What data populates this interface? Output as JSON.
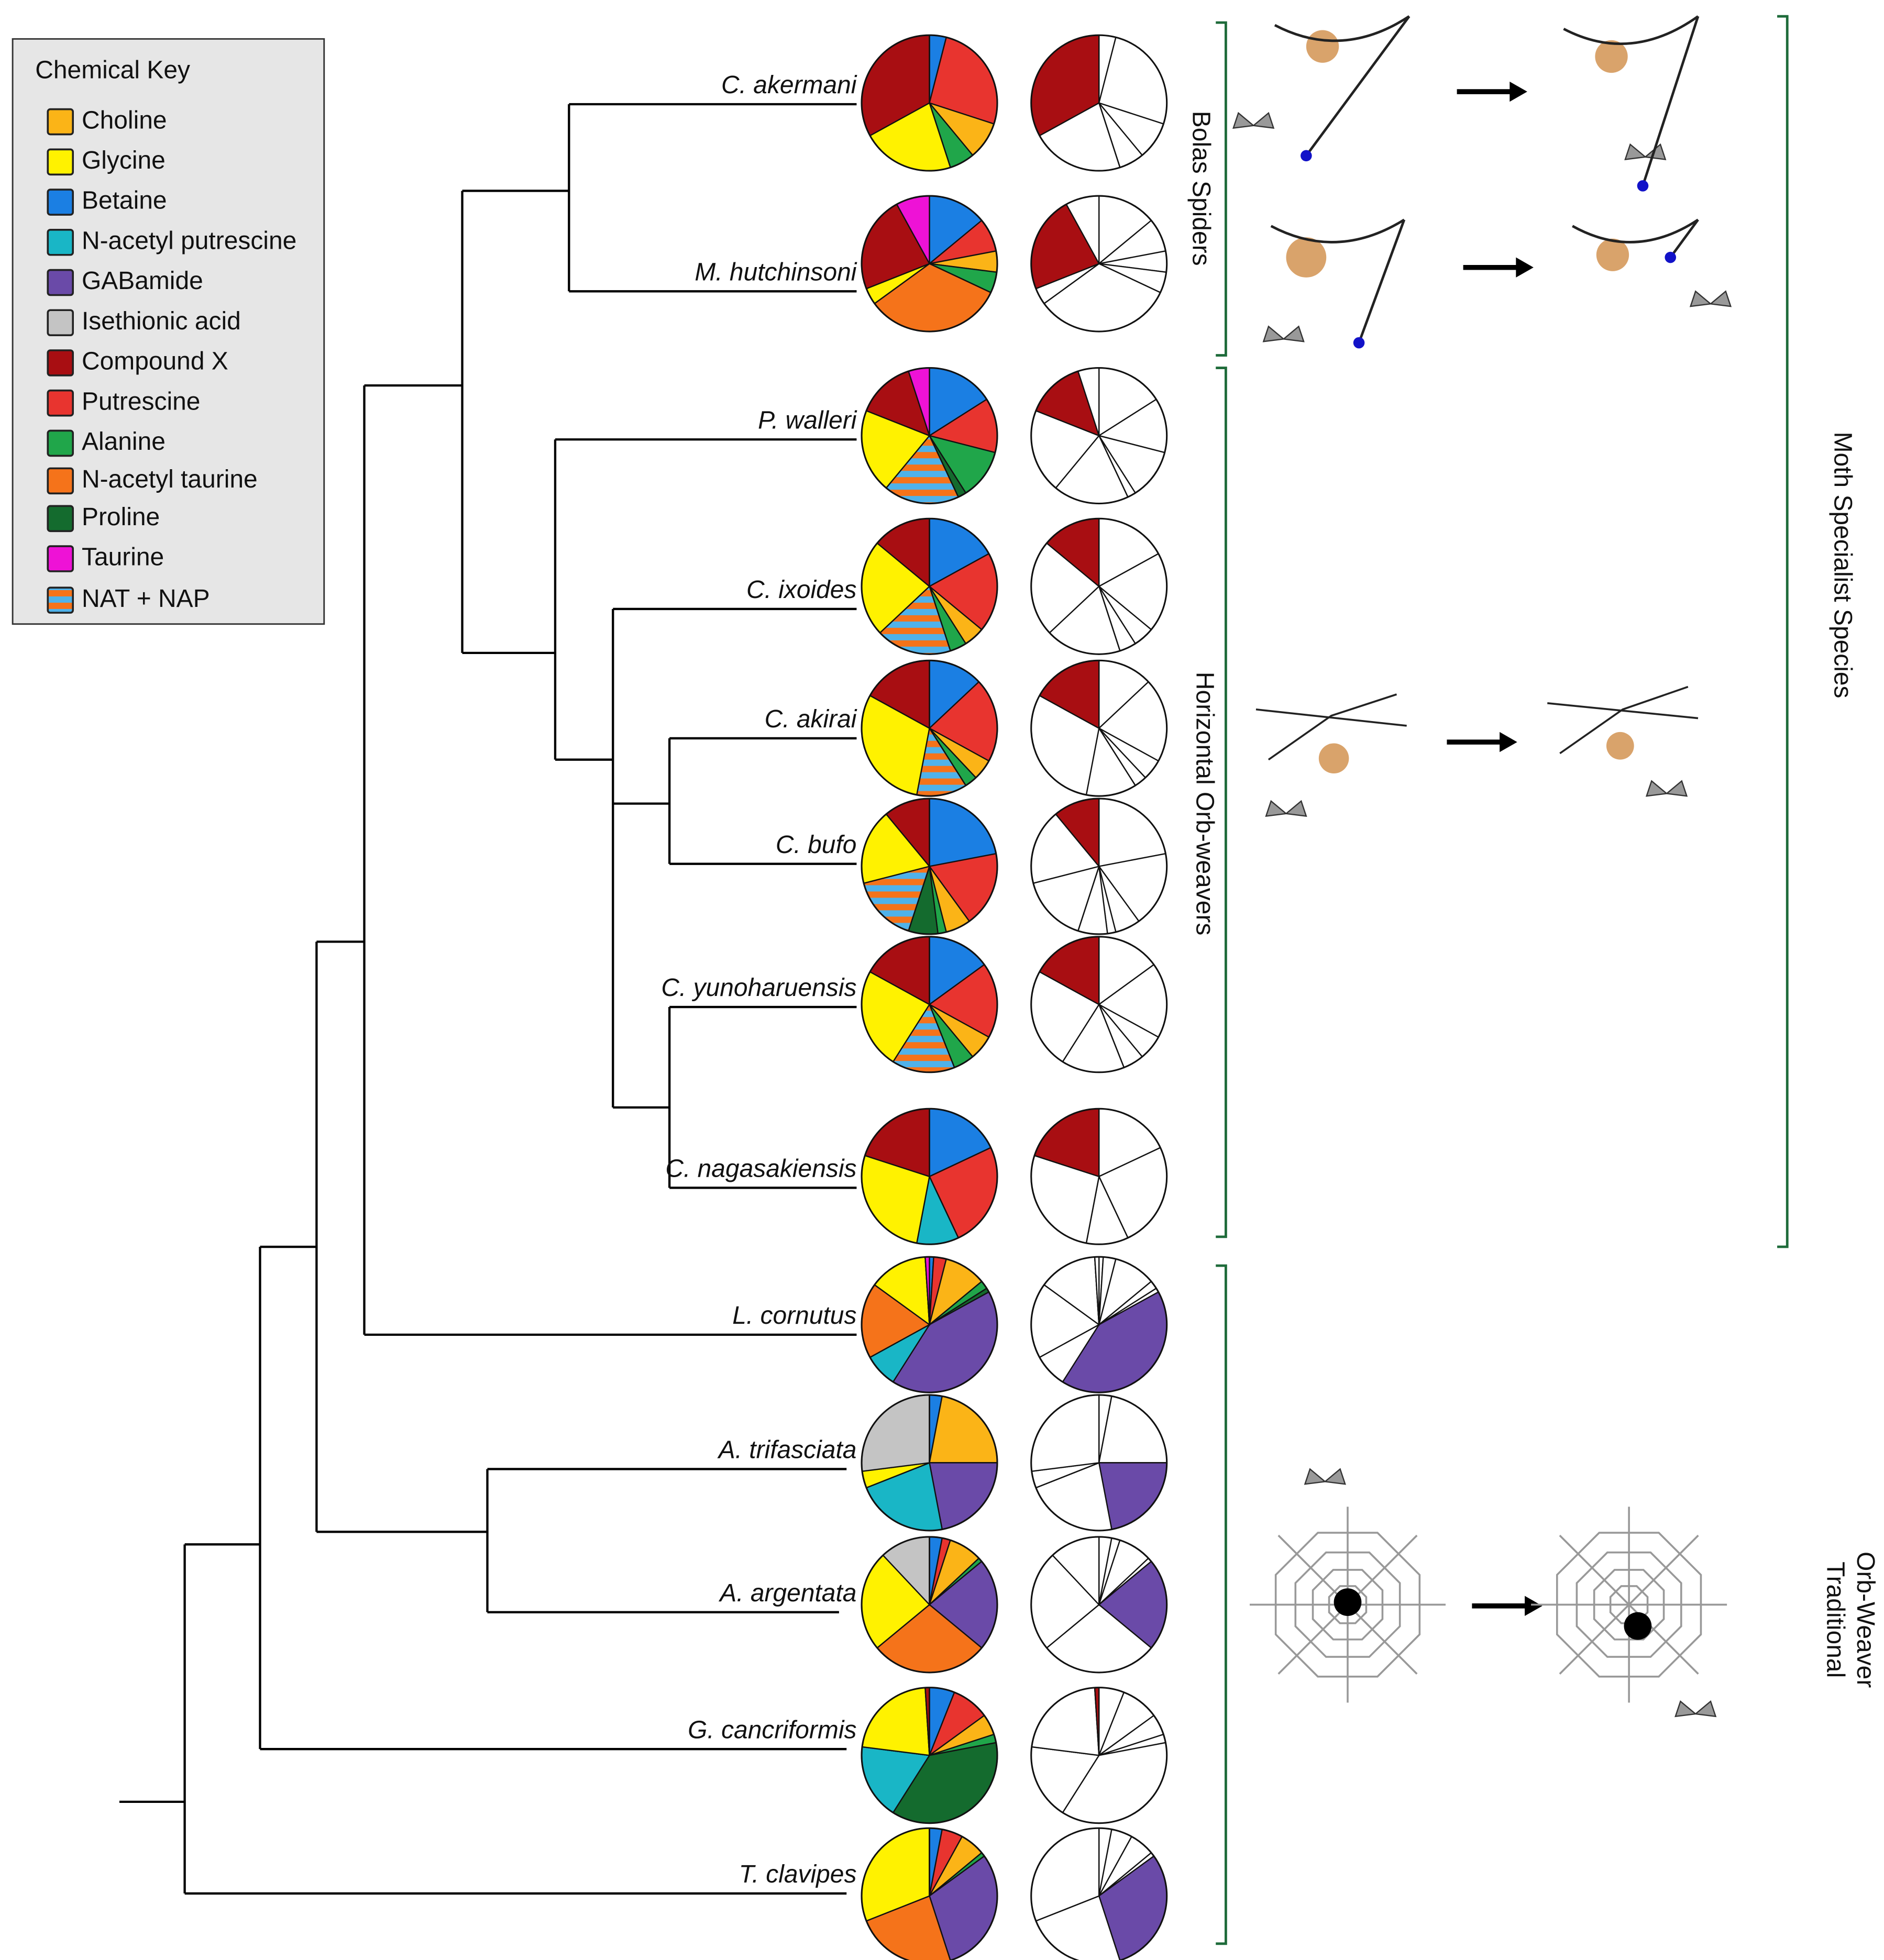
{
  "key": {
    "title": "Chemical Key",
    "items": [
      {
        "name": "Choline",
        "color": "#fbb417"
      },
      {
        "name": "Glycine",
        "color": "#fff200"
      },
      {
        "name": "Betaine",
        "color": "#1b7fe3"
      },
      {
        "name": "N-acetyl putrescine",
        "color": "#19b6c6"
      },
      {
        "name": "GABamide",
        "color": "#6a4aa8"
      },
      {
        "name": "Isethionic acid",
        "color": "#c4c4c4"
      },
      {
        "name": "Compound X",
        "color": "#a80e12"
      },
      {
        "name": "Putrescine",
        "color": "#e8342f"
      },
      {
        "name": "Alanine",
        "color": "#20a64a"
      },
      {
        "name": "N-acetyl taurine",
        "color": "#f5731a"
      },
      {
        "name": "Proline",
        "color": "#146b2e"
      },
      {
        "name": "Taurine",
        "color": "#ee12d6"
      },
      {
        "name": "NAT + NAP",
        "stripes": [
          "#f5731a",
          "#4fb2ea"
        ]
      }
    ]
  },
  "highlighted_chemicals": [
    "Compound X",
    "GABamide"
  ],
  "species": [
    {
      "name": "C. akermani",
      "values": [
        9,
        22,
        4,
        0,
        0,
        0,
        33,
        26,
        6,
        0,
        0,
        0,
        0
      ]
    },
    {
      "name": "M. hutchinsoni",
      "values": [
        5,
        4,
        14,
        0,
        0,
        0,
        23,
        8,
        5,
        33,
        0,
        8,
        0
      ]
    },
    {
      "name": "P. walleri",
      "values": [
        0,
        20,
        16,
        0,
        0,
        0,
        14,
        13,
        12,
        0,
        2,
        5,
        18
      ]
    },
    {
      "name": "C. ixoides",
      "values": [
        5,
        23,
        17,
        0,
        0,
        0,
        14,
        19,
        4,
        0,
        0,
        0,
        18
      ]
    },
    {
      "name": "C. akirai",
      "values": [
        5,
        30,
        13,
        0,
        0,
        0,
        17,
        20,
        3,
        0,
        0,
        0,
        12
      ]
    },
    {
      "name": "C. bufo",
      "values": [
        6,
        18,
        22,
        0,
        0,
        0,
        11,
        18,
        2,
        0,
        7,
        0,
        16
      ]
    },
    {
      "name": "C. yunoharuensis",
      "values": [
        6,
        24,
        15,
        0,
        0,
        0,
        17,
        18,
        5,
        0,
        0,
        0,
        15
      ]
    },
    {
      "name": "C. nagasakiensis",
      "values": [
        0,
        27,
        18,
        10,
        0,
        0,
        20,
        25,
        0,
        0,
        0,
        0,
        0
      ]
    },
    {
      "name": "L. cornutus",
      "values": [
        10,
        14,
        1,
        8,
        42,
        0,
        0,
        3,
        2,
        18,
        1,
        1,
        0
      ]
    },
    {
      "name": "A. trifasciata",
      "values": [
        22,
        4,
        3,
        22,
        22,
        27,
        0,
        0,
        0,
        0,
        0,
        0,
        0
      ]
    },
    {
      "name": "A. argentata",
      "values": [
        8,
        24,
        3,
        0,
        22,
        12,
        0,
        2,
        1,
        28,
        0,
        0,
        0
      ]
    },
    {
      "name": "G. cancriformis",
      "values": [
        5,
        22,
        6,
        18,
        0,
        0,
        1,
        9,
        2,
        0,
        37,
        0,
        0
      ]
    },
    {
      "name": "T. clavipes",
      "values": [
        6,
        31,
        3,
        0,
        30,
        0,
        0,
        5,
        1,
        24,
        0,
        0,
        0
      ]
    }
  ],
  "groups": {
    "bolas": "Bolas Spiders",
    "horizontal": "Horizontal Orb-weavers",
    "moth": "Moth Specialist Species",
    "traditional": [
      "Traditional",
      "Orb-Weaver"
    ]
  }
}
